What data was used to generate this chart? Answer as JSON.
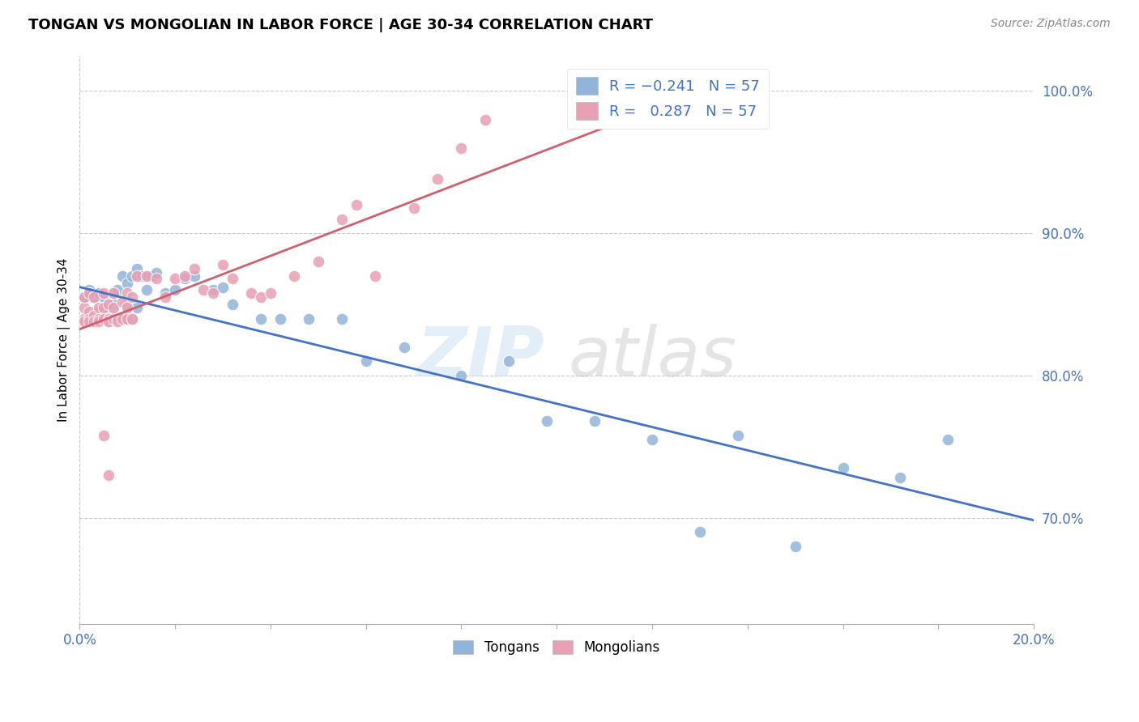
{
  "title": "TONGAN VS MONGOLIAN IN LABOR FORCE | AGE 30-34 CORRELATION CHART",
  "source": "Source: ZipAtlas.com",
  "ylabel": "In Labor Force | Age 30-34",
  "xlim": [
    0.0,
    0.2
  ],
  "ylim": [
    0.625,
    1.025
  ],
  "xticks": [
    0.0,
    0.02,
    0.04,
    0.06,
    0.08,
    0.1,
    0.12,
    0.14,
    0.16,
    0.18,
    0.2
  ],
  "yticks_right": [
    0.7,
    0.8,
    0.9,
    1.0
  ],
  "ytick_labels_right": [
    "70.0%",
    "80.0%",
    "90.0%",
    "100.0%"
  ],
  "blue_color": "#92b4d8",
  "pink_color": "#e8a0b4",
  "blue_line_color": "#4472c4",
  "pink_line_color": "#d06070",
  "blue_scatter_x": [
    0.001,
    0.001,
    0.002,
    0.002,
    0.003,
    0.003,
    0.003,
    0.004,
    0.004,
    0.004,
    0.005,
    0.005,
    0.005,
    0.006,
    0.006,
    0.006,
    0.007,
    0.007,
    0.007,
    0.008,
    0.008,
    0.009,
    0.009,
    0.01,
    0.01,
    0.011,
    0.011,
    0.012,
    0.012,
    0.013,
    0.014,
    0.015,
    0.016,
    0.018,
    0.02,
    0.022,
    0.024,
    0.028,
    0.03,
    0.032,
    0.038,
    0.042,
    0.048,
    0.055,
    0.06,
    0.068,
    0.08,
    0.09,
    0.098,
    0.108,
    0.12,
    0.13,
    0.138,
    0.15,
    0.16,
    0.172,
    0.182
  ],
  "blue_scatter_y": [
    0.84,
    0.855,
    0.838,
    0.86,
    0.855,
    0.84,
    0.838,
    0.845,
    0.858,
    0.84,
    0.848,
    0.84,
    0.855,
    0.848,
    0.84,
    0.838,
    0.858,
    0.85,
    0.84,
    0.86,
    0.84,
    0.87,
    0.84,
    0.865,
    0.848,
    0.87,
    0.84,
    0.875,
    0.848,
    0.87,
    0.86,
    0.87,
    0.872,
    0.858,
    0.86,
    0.868,
    0.87,
    0.86,
    0.862,
    0.85,
    0.84,
    0.84,
    0.84,
    0.84,
    0.81,
    0.82,
    0.8,
    0.81,
    0.768,
    0.768,
    0.755,
    0.69,
    0.758,
    0.68,
    0.735,
    0.728,
    0.755
  ],
  "pink_scatter_x": [
    0.001,
    0.001,
    0.001,
    0.001,
    0.002,
    0.002,
    0.002,
    0.002,
    0.003,
    0.003,
    0.003,
    0.004,
    0.004,
    0.004,
    0.005,
    0.005,
    0.005,
    0.006,
    0.006,
    0.006,
    0.007,
    0.007,
    0.007,
    0.008,
    0.008,
    0.009,
    0.009,
    0.01,
    0.01,
    0.01,
    0.011,
    0.011,
    0.012,
    0.014,
    0.016,
    0.018,
    0.02,
    0.022,
    0.024,
    0.026,
    0.028,
    0.03,
    0.032,
    0.036,
    0.038,
    0.04,
    0.045,
    0.05,
    0.055,
    0.058,
    0.062,
    0.07,
    0.075,
    0.08,
    0.085,
    0.005,
    0.006
  ],
  "pink_scatter_y": [
    0.84,
    0.848,
    0.838,
    0.855,
    0.845,
    0.84,
    0.858,
    0.838,
    0.855,
    0.842,
    0.838,
    0.848,
    0.84,
    0.838,
    0.858,
    0.848,
    0.84,
    0.85,
    0.84,
    0.838,
    0.858,
    0.84,
    0.848,
    0.84,
    0.838,
    0.852,
    0.84,
    0.858,
    0.848,
    0.84,
    0.855,
    0.84,
    0.87,
    0.87,
    0.868,
    0.855,
    0.868,
    0.87,
    0.875,
    0.86,
    0.858,
    0.878,
    0.868,
    0.858,
    0.855,
    0.858,
    0.87,
    0.88,
    0.91,
    0.92,
    0.87,
    0.918,
    0.938,
    0.96,
    0.98,
    0.758,
    0.73
  ],
  "blue_trend": [
    -1.05,
    0.856
  ],
  "pink_trend": [
    1.45,
    0.84
  ]
}
